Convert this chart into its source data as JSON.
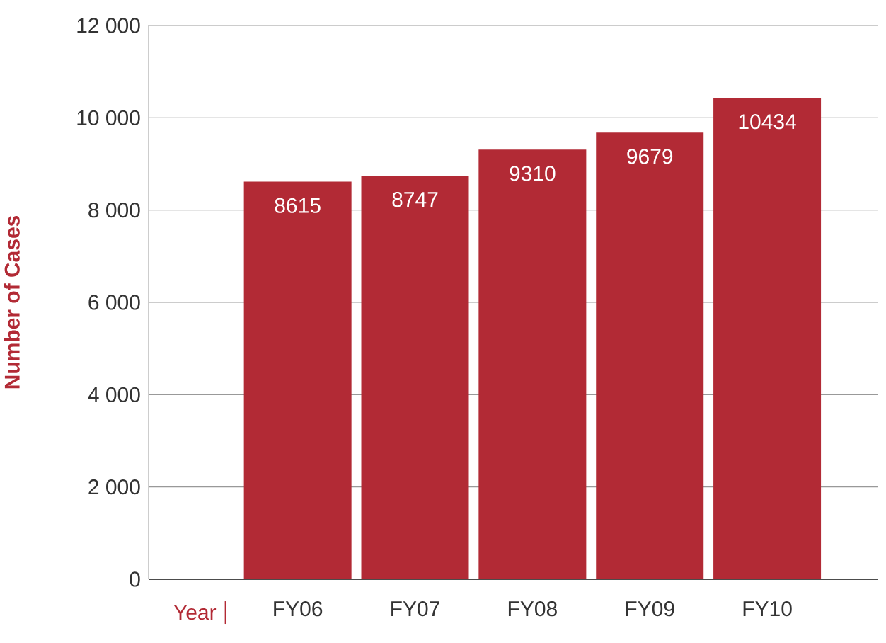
{
  "chart_data": {
    "type": "bar",
    "xlabel": "Year",
    "ylabel": "Number of Cases",
    "categories": [
      "FY06",
      "FY07",
      "FY08",
      "FY09",
      "FY10"
    ],
    "values": [
      8615,
      8747,
      9310,
      9679,
      10434
    ],
    "color": "#b22a35",
    "data_labels": true,
    "grid": "y",
    "ylim": [
      0,
      12000
    ],
    "yticks": [
      0,
      {
        "value": 2000,
        "label": "2 000"
      },
      {
        "value": 4000,
        "label": "4 000"
      },
      {
        "value": 6000,
        "label": "6 000"
      },
      {
        "value": 8000,
        "label": "8 000"
      },
      {
        "value": 10000,
        "label": "10 000"
      },
      {
        "value": 12000,
        "label": "12 000"
      }
    ]
  }
}
